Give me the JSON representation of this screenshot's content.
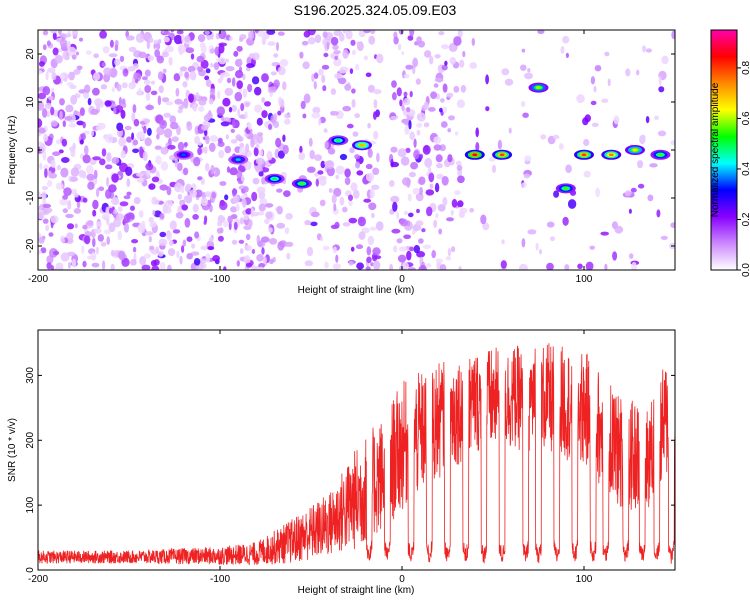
{
  "title": "S196.2025.324.05.09.E03",
  "chart_data": [
    {
      "type": "heatmap",
      "xlabel": "Height of straight line (km)",
      "ylabel": "Frequency (Hz)",
      "xlim": [
        -200,
        150
      ],
      "ylim": [
        -25,
        25
      ],
      "xticks": [
        -200,
        -100,
        0,
        100
      ],
      "yticks": [
        -20,
        -10,
        0,
        10,
        20
      ],
      "colorbar": {
        "label": "Normalized spectral amplitude",
        "range": [
          0,
          0.95
        ],
        "ticks": [
          0.0,
          0.2,
          0.4,
          0.6,
          0.8
        ],
        "tick_labels": [
          "0.0",
          "0.2",
          "0.4",
          "0.6",
          "0.8"
        ],
        "colors": [
          "#ffffff",
          "#cc88ff",
          "#8800ff",
          "#0000ff",
          "#00ffff",
          "#00ff00",
          "#ffff00",
          "#ff8800",
          "#ff0000",
          "#ff00aa"
        ]
      },
      "features": [
        {
          "x": -120,
          "y": -1,
          "amp": 0.35
        },
        {
          "x": -90,
          "y": -2,
          "amp": 0.4
        },
        {
          "x": -70,
          "y": -6,
          "amp": 0.5
        },
        {
          "x": -55,
          "y": -7,
          "amp": 0.55
        },
        {
          "x": -35,
          "y": 2,
          "amp": 0.5
        },
        {
          "x": -22,
          "y": 1,
          "amp": 0.7
        },
        {
          "x": 40,
          "y": -1,
          "amp": 0.85
        },
        {
          "x": 55,
          "y": -1,
          "amp": 0.8
        },
        {
          "x": 75,
          "y": 13,
          "amp": 0.6
        },
        {
          "x": 90,
          "y": -8,
          "amp": 0.55
        },
        {
          "x": 100,
          "y": -1,
          "amp": 0.8
        },
        {
          "x": 115,
          "y": -1,
          "amp": 0.75
        },
        {
          "x": 128,
          "y": 0,
          "amp": 0.65
        },
        {
          "x": 142,
          "y": -1,
          "amp": 0.55
        }
      ]
    },
    {
      "type": "line",
      "xlabel": "Height of straight line (km)",
      "ylabel": "SNR (10 * v/v)",
      "xlim": [
        -200,
        150
      ],
      "ylim": [
        0,
        370
      ],
      "xticks": [
        -200,
        -100,
        0,
        100
      ],
      "yticks": [
        0,
        100,
        200,
        300
      ],
      "color": "#ee2222",
      "envelope": [
        {
          "x": -200,
          "y": 20,
          "amp": 10
        },
        {
          "x": -150,
          "y": 20,
          "amp": 10
        },
        {
          "x": -100,
          "y": 22,
          "amp": 14
        },
        {
          "x": -80,
          "y": 25,
          "amp": 18
        },
        {
          "x": -60,
          "y": 45,
          "amp": 35
        },
        {
          "x": -40,
          "y": 70,
          "amp": 50
        },
        {
          "x": -25,
          "y": 110,
          "amp": 80
        },
        {
          "x": -10,
          "y": 150,
          "amp": 90
        },
        {
          "x": 0,
          "y": 190,
          "amp": 100
        },
        {
          "x": 20,
          "y": 230,
          "amp": 90
        },
        {
          "x": 40,
          "y": 260,
          "amp": 80
        },
        {
          "x": 60,
          "y": 265,
          "amp": 80
        },
        {
          "x": 80,
          "y": 265,
          "amp": 85
        },
        {
          "x": 100,
          "y": 250,
          "amp": 90
        },
        {
          "x": 120,
          "y": 180,
          "amp": 90
        },
        {
          "x": 135,
          "y": 170,
          "amp": 80
        },
        {
          "x": 150,
          "y": 260,
          "amp": 100
        }
      ],
      "dips": [
        -18,
        -8,
        5,
        15,
        25,
        35,
        45,
        55,
        68,
        75,
        85,
        95,
        105,
        112,
        123,
        132,
        140,
        148
      ]
    }
  ]
}
